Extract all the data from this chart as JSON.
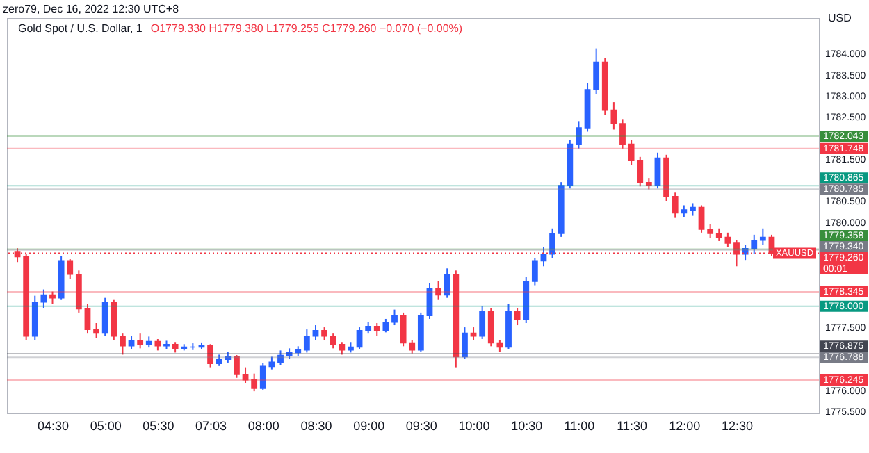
{
  "chart_data": {
    "type": "candlestick",
    "title": "Gold Spot / U.S. Dollar, 1",
    "subtitle": "O1779.330 H1779.380 L1779.255 C1779.260 −0.070 (−0.00%)",
    "ylabel": "USD",
    "annotations": [
      "zero79, Dec 16, 2022 12:30 UTC+8",
      {
        "text": "XAUUSD",
        "y": 1779.26
      },
      "00:01"
    ],
    "categories": [
      null,
      null,
      null,
      null,
      "04:30",
      null,
      null,
      null,
      null,
      null,
      "05:00",
      null,
      null,
      null,
      null,
      null,
      "05:30",
      null,
      null,
      null,
      null,
      null,
      "07:03",
      null,
      null,
      null,
      null,
      null,
      "08:00",
      null,
      null,
      null,
      null,
      null,
      "08:30",
      null,
      null,
      null,
      null,
      null,
      "09:00",
      null,
      null,
      null,
      null,
      null,
      "09:30",
      null,
      null,
      null,
      null,
      null,
      "10:00",
      null,
      null,
      null,
      null,
      null,
      "10:30",
      null,
      null,
      null,
      null,
      null,
      "11:00",
      null,
      null,
      null,
      null,
      null,
      "11:30",
      null,
      null,
      null,
      null,
      null,
      "12:00",
      null,
      null,
      null,
      null,
      null,
      "12:30",
      null,
      null,
      null,
      null
    ],
    "ohlc": [
      [
        1779.3,
        1779.38,
        1779.05,
        1779.18
      ],
      [
        1779.18,
        1779.25,
        1777.2,
        1777.29
      ],
      [
        1777.29,
        1778.25,
        1777.2,
        1778.1
      ],
      [
        1778.1,
        1778.4,
        1777.95,
        1778.27
      ],
      [
        1778.27,
        1778.35,
        1778.05,
        1778.2
      ],
      [
        1778.2,
        1779.2,
        1778.15,
        1779.08
      ],
      [
        1779.08,
        1779.12,
        1778.65,
        1778.76
      ],
      [
        1778.76,
        1778.85,
        1777.85,
        1777.94
      ],
      [
        1777.94,
        1778.05,
        1777.35,
        1777.45
      ],
      [
        1777.45,
        1777.6,
        1777.25,
        1777.36
      ],
      [
        1777.36,
        1778.2,
        1777.3,
        1778.1
      ],
      [
        1778.1,
        1778.15,
        1777.2,
        1777.29
      ],
      [
        1777.29,
        1777.35,
        1776.85,
        1777.06
      ],
      [
        1777.06,
        1777.3,
        1776.98,
        1777.19
      ],
      [
        1777.19,
        1777.35,
        1777.0,
        1777.09
      ],
      [
        1777.09,
        1777.28,
        1777.02,
        1777.16
      ],
      [
        1777.16,
        1777.22,
        1776.95,
        1777.06
      ],
      [
        1777.06,
        1777.18,
        1776.98,
        1777.09
      ],
      [
        1777.09,
        1777.15,
        1776.9,
        1777.0
      ],
      [
        1777.0,
        1777.1,
        1776.95,
        1777.03
      ],
      [
        1777.03,
        1777.12,
        1776.96,
        1777.03
      ],
      [
        1777.03,
        1777.14,
        1776.98,
        1777.06
      ],
      [
        1777.06,
        1777.1,
        1776.55,
        1776.64
      ],
      [
        1776.64,
        1776.85,
        1776.58,
        1776.74
      ],
      [
        1776.74,
        1776.92,
        1776.66,
        1776.8
      ],
      [
        1776.8,
        1776.84,
        1776.3,
        1776.38
      ],
      [
        1776.38,
        1776.55,
        1776.18,
        1776.25
      ],
      [
        1776.25,
        1776.4,
        1775.98,
        1776.05
      ],
      [
        1776.05,
        1776.65,
        1776.0,
        1776.57
      ],
      [
        1776.57,
        1776.8,
        1776.5,
        1776.67
      ],
      [
        1776.67,
        1776.95,
        1776.6,
        1776.83
      ],
      [
        1776.83,
        1777.0,
        1776.75,
        1776.9
      ],
      [
        1776.9,
        1777.05,
        1776.82,
        1776.96
      ],
      [
        1776.96,
        1777.45,
        1776.9,
        1777.29
      ],
      [
        1777.29,
        1777.55,
        1777.2,
        1777.42
      ],
      [
        1777.42,
        1777.5,
        1777.2,
        1777.29
      ],
      [
        1777.29,
        1777.35,
        1777.0,
        1777.09
      ],
      [
        1777.09,
        1777.15,
        1776.85,
        1776.96
      ],
      [
        1776.96,
        1777.15,
        1776.9,
        1777.03
      ],
      [
        1777.03,
        1777.5,
        1776.98,
        1777.42
      ],
      [
        1777.42,
        1777.62,
        1777.35,
        1777.52
      ],
      [
        1777.52,
        1777.6,
        1777.3,
        1777.42
      ],
      [
        1777.42,
        1777.7,
        1777.38,
        1777.62
      ],
      [
        1777.62,
        1777.92,
        1777.55,
        1777.78
      ],
      [
        1777.78,
        1777.85,
        1777.05,
        1777.13
      ],
      [
        1777.13,
        1777.2,
        1776.88,
        1776.96
      ],
      [
        1776.96,
        1777.85,
        1776.92,
        1777.78
      ],
      [
        1777.78,
        1778.55,
        1777.7,
        1778.43
      ],
      [
        1778.43,
        1778.6,
        1778.15,
        1778.27
      ],
      [
        1778.27,
        1778.9,
        1778.2,
        1778.76
      ],
      [
        1778.76,
        1778.85,
        1776.55,
        1776.8
      ],
      [
        1776.8,
        1777.5,
        1776.75,
        1777.36
      ],
      [
        1777.36,
        1777.5,
        1777.2,
        1777.29
      ],
      [
        1777.29,
        1778.0,
        1777.22,
        1777.88
      ],
      [
        1777.88,
        1777.95,
        1777.05,
        1777.13
      ],
      [
        1777.13,
        1777.2,
        1776.92,
        1777.03
      ],
      [
        1777.03,
        1778.05,
        1776.98,
        1777.88
      ],
      [
        1777.88,
        1777.95,
        1777.55,
        1777.68
      ],
      [
        1777.68,
        1778.7,
        1777.6,
        1778.59
      ],
      [
        1778.59,
        1779.15,
        1778.5,
        1779.08
      ],
      [
        1779.08,
        1779.4,
        1778.95,
        1779.24
      ],
      [
        1779.24,
        1779.85,
        1779.15,
        1779.73
      ],
      [
        1779.73,
        1780.95,
        1779.65,
        1780.87
      ],
      [
        1780.87,
        1781.95,
        1780.8,
        1781.85
      ],
      [
        1781.85,
        1782.4,
        1781.75,
        1782.24
      ],
      [
        1782.24,
        1783.3,
        1782.15,
        1783.15
      ],
      [
        1783.15,
        1784.13,
        1783.05,
        1783.8
      ],
      [
        1783.8,
        1783.9,
        1782.55,
        1782.66
      ],
      [
        1782.66,
        1782.85,
        1782.2,
        1782.34
      ],
      [
        1782.34,
        1782.45,
        1781.75,
        1781.85
      ],
      [
        1781.85,
        1781.95,
        1781.35,
        1781.46
      ],
      [
        1781.46,
        1781.55,
        1780.85,
        1780.94
      ],
      [
        1780.94,
        1781.05,
        1780.78,
        1780.87
      ],
      [
        1780.87,
        1781.65,
        1780.8,
        1781.52
      ],
      [
        1781.52,
        1781.6,
        1780.5,
        1780.61
      ],
      [
        1780.61,
        1780.7,
        1780.1,
        1780.22
      ],
      [
        1780.22,
        1780.4,
        1780.12,
        1780.29
      ],
      [
        1780.29,
        1780.45,
        1780.15,
        1780.35
      ],
      [
        1780.35,
        1780.4,
        1779.75,
        1779.83
      ],
      [
        1779.83,
        1779.95,
        1779.62,
        1779.73
      ],
      [
        1779.73,
        1779.85,
        1779.55,
        1779.64
      ],
      [
        1779.64,
        1779.75,
        1779.4,
        1779.5
      ],
      [
        1779.5,
        1779.58,
        1778.95,
        1779.24
      ],
      [
        1779.24,
        1779.45,
        1779.1,
        1779.37
      ],
      [
        1779.37,
        1779.7,
        1779.25,
        1779.57
      ],
      [
        1779.57,
        1779.85,
        1779.45,
        1779.64
      ],
      [
        1779.64,
        1779.7,
        1779.2,
        1779.26
      ]
    ],
    "ylim": [
      1775.47,
      1784.85
    ],
    "yticks": [
      {
        "value": 1775.5,
        "label": "1775.500"
      },
      {
        "value": 1776,
        "label": "1776.000"
      },
      {
        "value": 1777.5,
        "label": "1777.500"
      },
      {
        "value": 1780,
        "label": "1780.000"
      },
      {
        "value": 1780.5,
        "label": "1780.500"
      },
      {
        "value": 1781.5,
        "label": "1781.500"
      },
      {
        "value": 1782.5,
        "label": "1782.500"
      },
      {
        "value": 1783,
        "label": "1783.000"
      },
      {
        "value": 1783.5,
        "label": "1783.500"
      },
      {
        "value": 1784,
        "label": "1784.000"
      }
    ],
    "ref_lines": [
      {
        "axis": "y",
        "value": 1782.043,
        "label": "1782.043",
        "color": "#388e3c"
      },
      {
        "axis": "y",
        "value": 1781.748,
        "label": "1781.748",
        "color": "#f23645"
      },
      {
        "axis": "y",
        "value": 1780.865,
        "label": "1780.865",
        "color": "#089981"
      },
      {
        "axis": "y",
        "value": 1780.785,
        "label": "1780.785",
        "color": "#787b86"
      },
      {
        "axis": "y",
        "value": 1779.358,
        "label": "1779.358",
        "color": "#388e3c"
      },
      {
        "axis": "y",
        "value": 1779.34,
        "label": "1779.340",
        "color": "#787b86"
      },
      {
        "axis": "y",
        "value": 1779.26,
        "label": "1779.260",
        "color": "#f23645",
        "line_style": "dotted"
      },
      {
        "axis": "y",
        "value": 1778.345,
        "label": "1778.345",
        "color": "#f23645"
      },
      {
        "axis": "y",
        "value": 1778,
        "label": "1778.000",
        "color": "#089981"
      },
      {
        "axis": "y",
        "value": 1776.875,
        "label": "1776.875",
        "color": "#434651"
      },
      {
        "axis": "y",
        "value": 1776.788,
        "label": "1776.788",
        "color": "#787b86"
      },
      {
        "axis": "y",
        "value": 1776.245,
        "label": "1776.245",
        "color": "#f23645"
      }
    ]
  }
}
